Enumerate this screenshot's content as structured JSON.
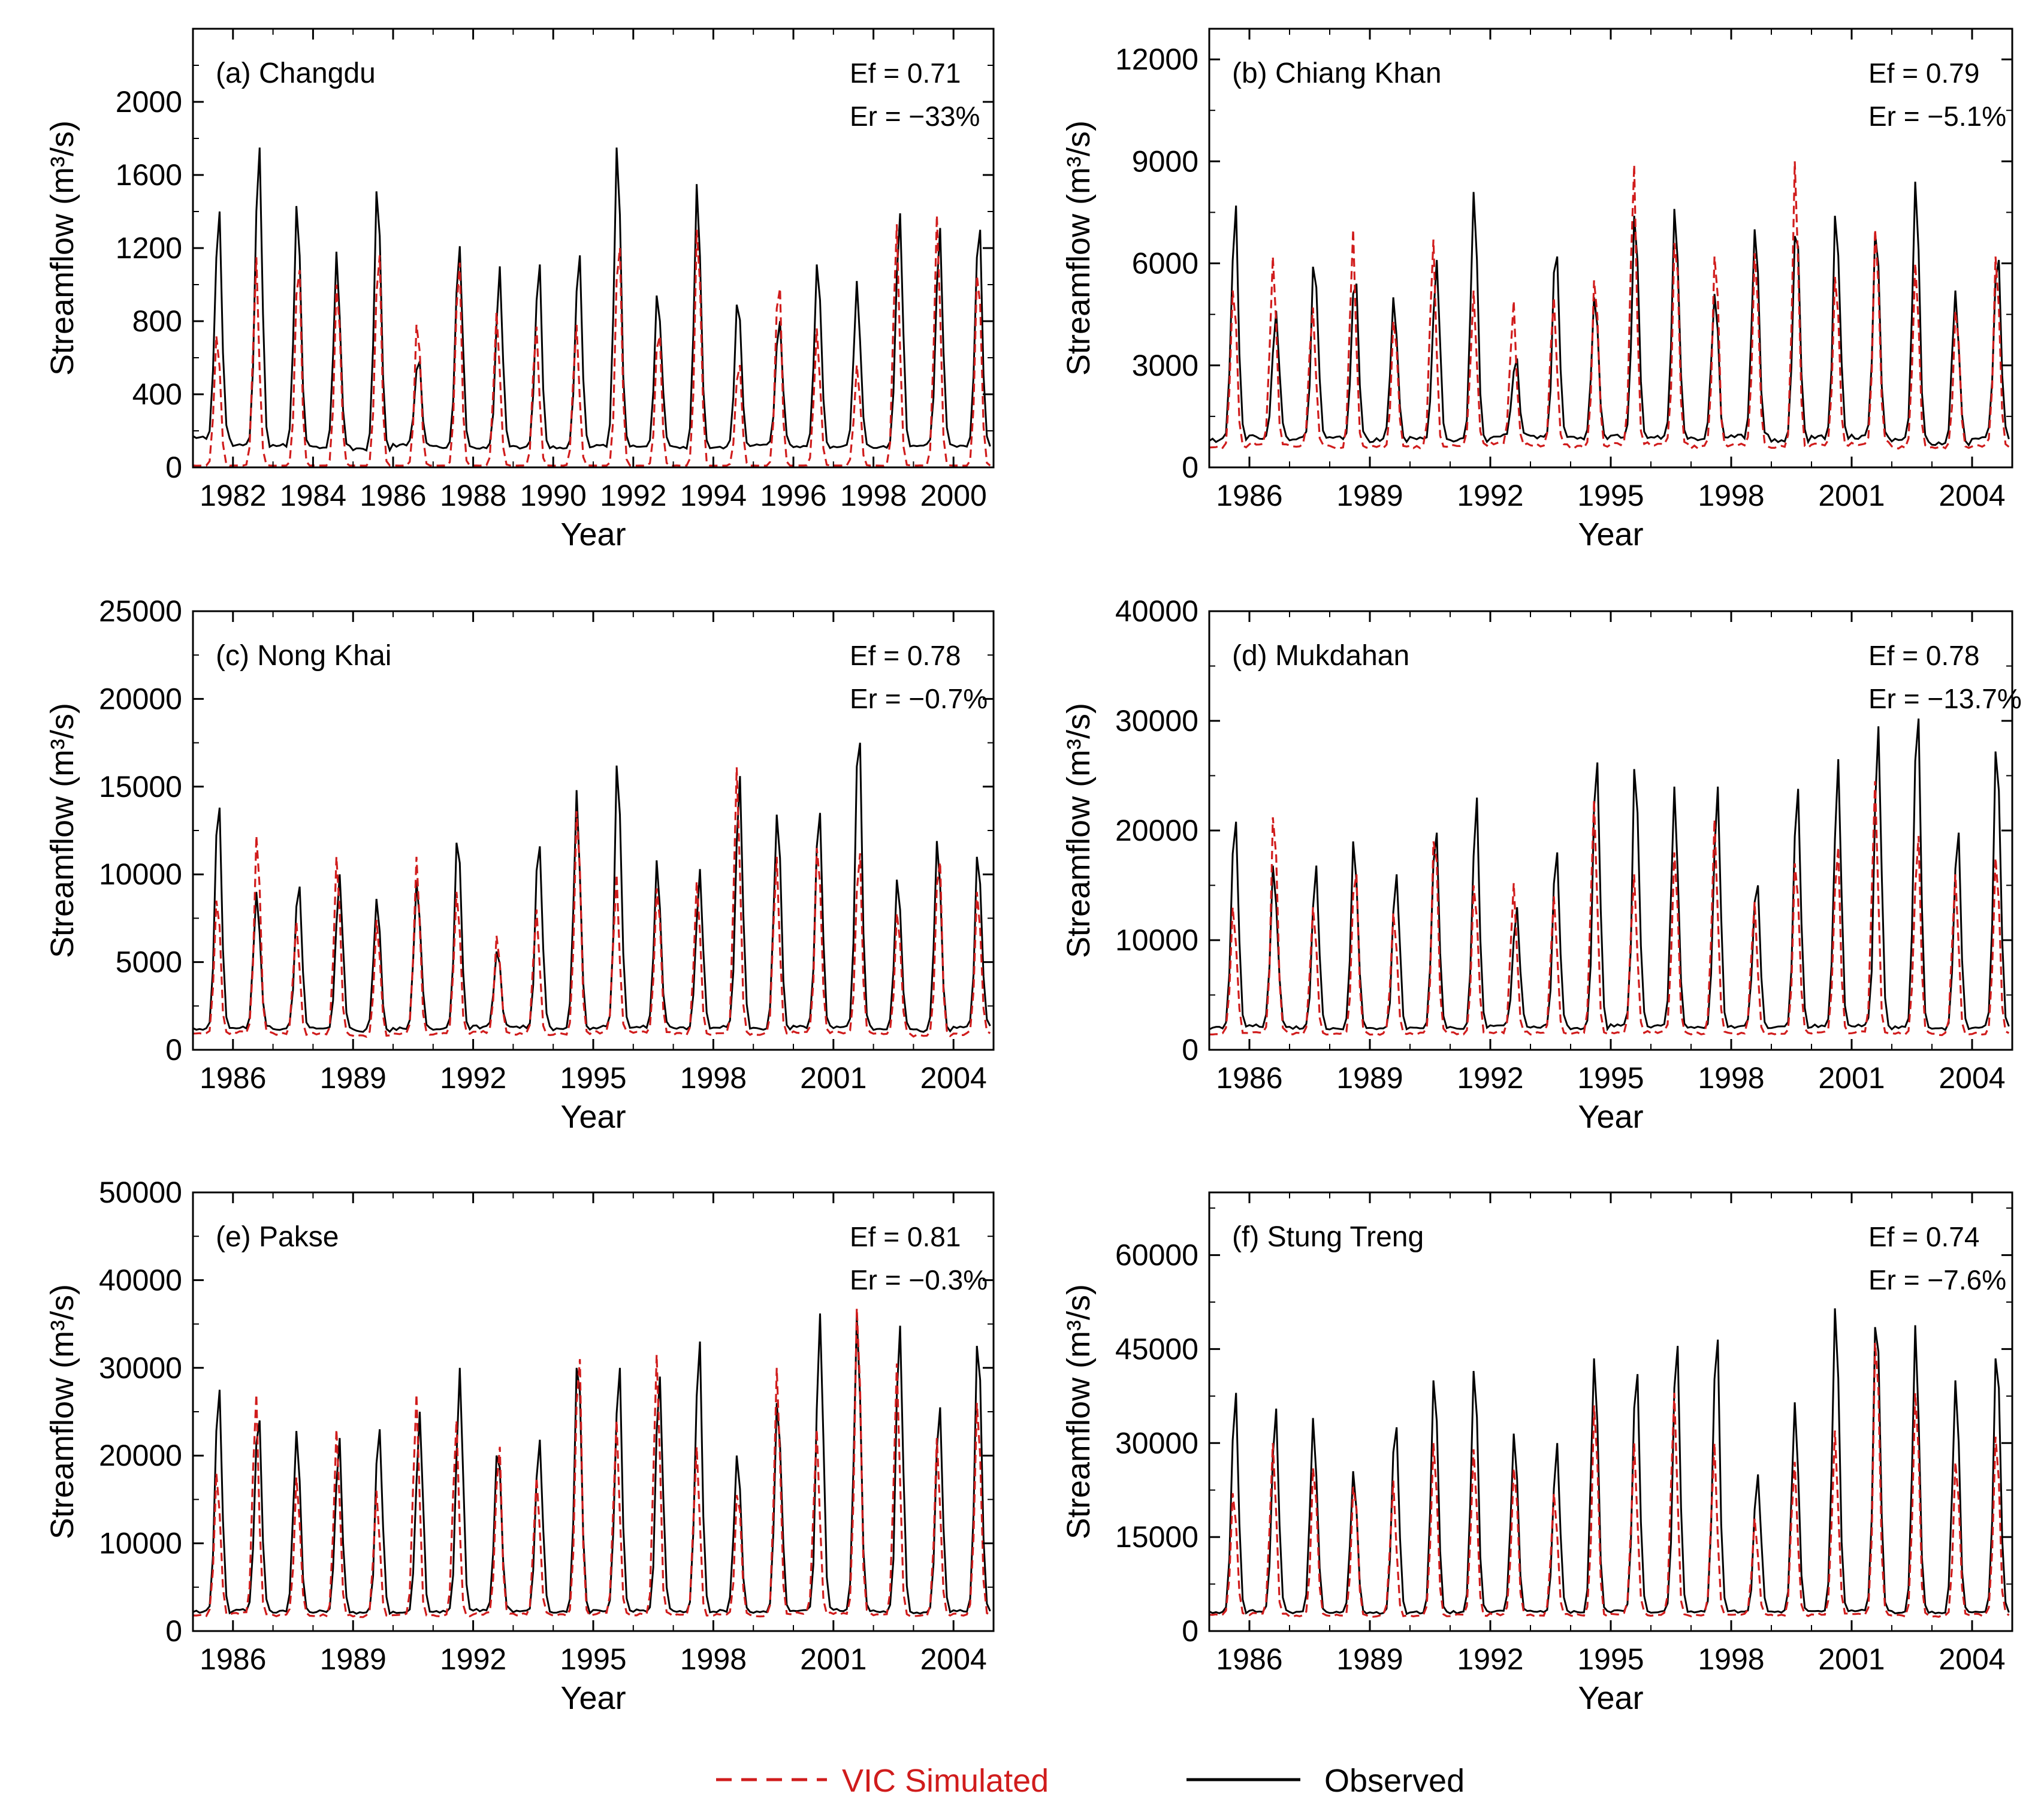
{
  "legend": {
    "simulated": {
      "label": "VIC Simulated",
      "color": "#d01c1c",
      "style": "dashed"
    },
    "observed": {
      "label": "Observed",
      "color": "#000000",
      "style": "solid"
    }
  },
  "chart_data": [
    {
      "type": "line",
      "title": "(a) Changdu",
      "ef": "Ef = 0.71",
      "er": "Er = −33%",
      "xlabel": "Year",
      "ylabel": "Streamflow (m³/s)",
      "xlim": [
        1981.0,
        2001.0
      ],
      "ylim": [
        0,
        2400
      ],
      "xticks": [
        1982,
        1984,
        1986,
        1988,
        1990,
        1992,
        1994,
        1996,
        1998,
        2000
      ],
      "xtick_labels": [
        "1982",
        "1984",
        "1986",
        "1988",
        "1990",
        "1992",
        "1994",
        "1996",
        "1998",
        "2000"
      ],
      "yticks": [
        0,
        400,
        800,
        1200,
        1600,
        2000
      ],
      "ytick_labels": [
        "0",
        "400",
        "800",
        "1200",
        "1600",
        "2000"
      ],
      "series": [
        {
          "name": "Observed",
          "peaks": [
            1400,
            1750,
            1430,
            1180,
            1510,
            580,
            1210,
            1100,
            1110,
            1160,
            1750,
            940,
            1550,
            890,
            800,
            1110,
            1020,
            1390,
            1310,
            1300
          ],
          "base": [
            160,
            120,
            120,
            110,
            100,
            120,
            110,
            110,
            110,
            110,
            120,
            120,
            110,
            110,
            120,
            110,
            110,
            110,
            120,
            120
          ]
        },
        {
          "name": "VIC Simulated",
          "peaks": [
            720,
            1150,
            1080,
            1000,
            1160,
            780,
            1120,
            850,
            770,
            780,
            1200,
            720,
            1300,
            560,
            980,
            760,
            560,
            1330,
            1380,
            1050
          ],
          "base": [
            10,
            10,
            10,
            10,
            10,
            10,
            10,
            10,
            10,
            10,
            10,
            10,
            10,
            10,
            10,
            10,
            10,
            10,
            10,
            10
          ]
        }
      ]
    },
    {
      "type": "line",
      "title": "(b) Chiang Khan",
      "ef": "Ef = 0.79",
      "er": "Er = −5.1%",
      "xlabel": "Year",
      "ylabel": "Streamflow (m³/s)",
      "xlim": [
        1985.0,
        2005.0
      ],
      "ylim": [
        0,
        12900
      ],
      "xticks": [
        1986,
        1989,
        1992,
        1995,
        1998,
        2001,
        2004
      ],
      "xtick_labels": [
        "1986",
        "1989",
        "1992",
        "1995",
        "1998",
        "2001",
        "2004"
      ],
      "yticks": [
        0,
        3000,
        6000,
        9000,
        12000
      ],
      "ytick_labels": [
        "0",
        "3000",
        "6000",
        "9000",
        "12000"
      ],
      "series": [
        {
          "name": "Observed",
          "peaks": [
            7700,
            4600,
            5900,
            5400,
            5000,
            6100,
            8100,
            3200,
            6200,
            5000,
            7400,
            7600,
            5100,
            7000,
            6800,
            7400,
            6900,
            8400,
            5200,
            6100
          ],
          "base": [
            800,
            900,
            850,
            850,
            800,
            850,
            800,
            900,
            900,
            850,
            900,
            900,
            850,
            900,
            800,
            900,
            900,
            800,
            700,
            900
          ]
        },
        {
          "name": "VIC Simulated",
          "peaks": [
            5200,
            6200,
            4700,
            7000,
            4300,
            6700,
            5200,
            4900,
            5000,
            5500,
            8900,
            6600,
            6200,
            6300,
            9000,
            5600,
            7000,
            6000,
            4600,
            6200
          ],
          "base": [
            600,
            700,
            650,
            600,
            600,
            600,
            650,
            700,
            650,
            600,
            700,
            650,
            600,
            650,
            600,
            650,
            700,
            600,
            600,
            650
          ]
        }
      ]
    },
    {
      "type": "line",
      "title": "(c) Nong Khai",
      "ef": "Ef = 0.78",
      "er": "Er = −0.7%",
      "xlabel": "Year",
      "ylabel": "Streamflow (m³/s)",
      "xlim": [
        1985.0,
        2005.0
      ],
      "ylim": [
        0,
        25000
      ],
      "xticks": [
        1986,
        1989,
        1992,
        1995,
        1998,
        2001,
        2004
      ],
      "xtick_labels": [
        "1986",
        "1989",
        "1992",
        "1995",
        "1998",
        "2001",
        "2004"
      ],
      "yticks": [
        0,
        5000,
        10000,
        15000,
        20000,
        25000
      ],
      "ytick_labels": [
        "0",
        "5000",
        "10000",
        "15000",
        "20000",
        "25000"
      ],
      "series": [
        {
          "name": "Observed",
          "peaks": [
            13800,
            9000,
            9300,
            10000,
            8600,
            9600,
            11800,
            5600,
            11600,
            14800,
            16200,
            10800,
            10300,
            15600,
            13400,
            13500,
            17500,
            9700,
            11900,
            11000
          ],
          "base": [
            1200,
            1300,
            1200,
            1200,
            1100,
            1200,
            1200,
            1300,
            1300,
            1200,
            1300,
            1300,
            1200,
            1300,
            1200,
            1300,
            1300,
            1200,
            1100,
            1300
          ]
        },
        {
          "name": "VIC Simulated",
          "peaks": [
            8500,
            12200,
            7300,
            11000,
            7400,
            11000,
            9000,
            6500,
            8000,
            13600,
            10000,
            9200,
            9600,
            16100,
            11000,
            11500,
            11200,
            7800,
            10700,
            9000
          ],
          "base": [
            900,
            1000,
            900,
            900,
            800,
            900,
            900,
            1000,
            900,
            900,
            1000,
            1000,
            900,
            900,
            900,
            1000,
            1000,
            900,
            800,
            900
          ]
        }
      ]
    },
    {
      "type": "line",
      "title": "(d) Mukdahan",
      "ef": "Ef = 0.78",
      "er": "Er = −13.7%",
      "xlabel": "Year",
      "ylabel": "Streamflow (m³/s)",
      "xlim": [
        1985.0,
        2005.0
      ],
      "ylim": [
        0,
        40000
      ],
      "xticks": [
        1986,
        1989,
        1992,
        1995,
        1998,
        2001,
        2004
      ],
      "xtick_labels": [
        "1986",
        "1989",
        "1992",
        "1995",
        "1998",
        "2001",
        "2004"
      ],
      "yticks": [
        0,
        10000,
        20000,
        30000,
        40000
      ],
      "ytick_labels": [
        "0",
        "10000",
        "20000",
        "30000",
        "40000"
      ],
      "series": [
        {
          "name": "Observed",
          "peaks": [
            20800,
            16800,
            16800,
            19000,
            16000,
            19800,
            23000,
            13000,
            18000,
            26200,
            25600,
            24000,
            24000,
            15000,
            23800,
            26500,
            29500,
            30200,
            19800,
            27200
          ],
          "base": [
            2000,
            2200,
            2000,
            2000,
            1900,
            2000,
            2000,
            2200,
            2100,
            2000,
            2200,
            2100,
            2000,
            2100,
            2000,
            2200,
            2200,
            2000,
            1900,
            2100
          ]
        },
        {
          "name": "VIC Simulated",
          "peaks": [
            13000,
            21200,
            13000,
            16000,
            12500,
            19000,
            15000,
            15200,
            14000,
            22800,
            16000,
            18000,
            21000,
            13500,
            17000,
            18500,
            24500,
            19500,
            16000,
            17500
          ],
          "base": [
            1500,
            1600,
            1500,
            1500,
            1400,
            1500,
            1500,
            1600,
            1500,
            1500,
            1600,
            1600,
            1500,
            1500,
            1500,
            1600,
            1600,
            1500,
            1400,
            1500
          ]
        }
      ]
    },
    {
      "type": "line",
      "title": "(e) Pakse",
      "ef": "Ef = 0.81",
      "er": "Er = −0.3%",
      "xlabel": "Year",
      "ylabel": "Streamflow (m³/s)",
      "xlim": [
        1985.0,
        2005.0
      ],
      "ylim": [
        0,
        50000
      ],
      "xticks": [
        1986,
        1989,
        1992,
        1995,
        1998,
        2001,
        2004
      ],
      "xtick_labels": [
        "1986",
        "1989",
        "1992",
        "1995",
        "1998",
        "2001",
        "2004"
      ],
      "yticks": [
        0,
        10000,
        20000,
        30000,
        40000,
        50000
      ],
      "ytick_labels": [
        "0",
        "10000",
        "20000",
        "30000",
        "40000",
        "50000"
      ],
      "series": [
        {
          "name": "Observed",
          "peaks": [
            27500,
            24000,
            22800,
            22000,
            23000,
            25000,
            30000,
            20000,
            21800,
            30000,
            30000,
            29000,
            33000,
            20000,
            26000,
            36200,
            36000,
            34800,
            25500,
            32500
          ],
          "base": [
            2200,
            2400,
            2200,
            2200,
            2100,
            2200,
            2200,
            2400,
            2300,
            2200,
            2400,
            2300,
            2200,
            2300,
            2200,
            2400,
            2400,
            2200,
            2100,
            2300
          ]
        },
        {
          "name": "VIC Simulated",
          "peaks": [
            18000,
            27000,
            17500,
            23000,
            16000,
            27000,
            24000,
            21000,
            17500,
            31000,
            24000,
            31500,
            21000,
            15500,
            30000,
            23000,
            36800,
            30500,
            22000,
            26000
          ],
          "base": [
            1800,
            2000,
            1800,
            1800,
            1700,
            1800,
            1800,
            2000,
            1900,
            1800,
            2000,
            1900,
            1800,
            1900,
            1800,
            2000,
            2000,
            1800,
            1700,
            1900
          ]
        }
      ]
    },
    {
      "type": "line",
      "title": "(f) Stung Treng",
      "ef": "Ef = 0.74",
      "er": "Er = −7.6%",
      "xlabel": "Year",
      "ylabel": "Streamflow (m³/s)",
      "xlim": [
        1985.0,
        2005.0
      ],
      "ylim": [
        0,
        70000
      ],
      "xticks": [
        1986,
        1989,
        1992,
        1995,
        1998,
        2001,
        2004
      ],
      "xtick_labels": [
        "1986",
        "1989",
        "1992",
        "1995",
        "1998",
        "2001",
        "2004"
      ],
      "yticks": [
        0,
        15000,
        30000,
        45000,
        60000
      ],
      "ytick_labels": [
        "0",
        "15000",
        "30000",
        "45000",
        "60000"
      ],
      "series": [
        {
          "name": "Observed",
          "peaks": [
            38000,
            35500,
            34000,
            25500,
            32500,
            40000,
            41500,
            31500,
            30000,
            43500,
            41000,
            45500,
            46500,
            25000,
            36500,
            51500,
            48500,
            48800,
            40000,
            43500
          ],
          "base": [
            3000,
            3200,
            3000,
            3000,
            2900,
            3000,
            3000,
            3200,
            3100,
            3000,
            3200,
            3100,
            3000,
            3100,
            3000,
            3200,
            3200,
            3000,
            2900,
            3100
          ]
        },
        {
          "name": "VIC Simulated",
          "peaks": [
            22000,
            30000,
            26000,
            23000,
            24000,
            30000,
            29000,
            26000,
            22000,
            36000,
            30000,
            38000,
            30000,
            18000,
            27000,
            32000,
            46000,
            38000,
            27000,
            31000
          ],
          "base": [
            2500,
            2700,
            2500,
            2500,
            2400,
            2500,
            2500,
            2700,
            2600,
            2500,
            2700,
            2600,
            2500,
            2600,
            2500,
            2700,
            2700,
            2500,
            2400,
            2600
          ]
        }
      ]
    }
  ]
}
